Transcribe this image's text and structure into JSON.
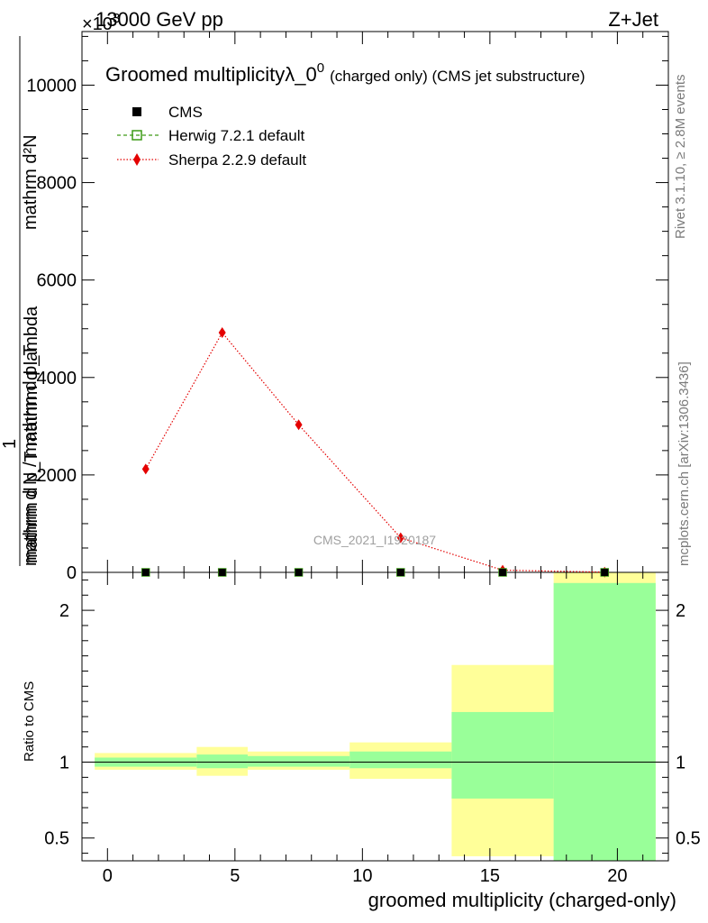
{
  "header": {
    "energy_label": "13000 GeV pp",
    "process_label": "Z+Jet",
    "exponent_label": "×10",
    "exponent_superscript": "3"
  },
  "side_labels": {
    "rivet": "Rivet 3.1.10, ≥ 2.8M events",
    "mcplots": "mcplots.cern.ch [arXiv:1306.3436]"
  },
  "chart_data": [
    {
      "type": "line",
      "title": "Groomed multiplicityλ_0",
      "title_superscript": "0",
      "title_suffix": "(charged only) (CMS jet substructure)",
      "xlabel": "",
      "ylabel_numerator": "mathrm d²N",
      "ylabel_numerator_sub": "mathrm d p_T mathrm d lambda",
      "ylabel_one": "1",
      "ylabel_denominator": "mathrm d N / mathrm d p_T",
      "ylim": [
        0,
        11100
      ],
      "xlim": [
        -1,
        22
      ],
      "yticks": [
        0,
        2000,
        4000,
        6000,
        8000,
        10000
      ],
      "ytick_labels": [
        "0",
        "2000",
        "4000",
        "6000",
        "8000",
        "10000"
      ],
      "analysis_id": "CMS_2021_I1920187",
      "legend_position": "top-left",
      "legend": [
        {
          "name": "CMS",
          "marker": "square",
          "color": "#000000"
        },
        {
          "name": "Herwig 7.2.1 default",
          "marker": "open-square",
          "color": "#3d9b16"
        },
        {
          "name": "Sherpa 2.2.9 default",
          "marker": "diamond",
          "color": "#e40000"
        }
      ],
      "series": [
        {
          "name": "CMS",
          "x": [
            1.5,
            4.5,
            7.5,
            11.5,
            15.5,
            19.5
          ],
          "values": [
            0,
            0,
            0,
            0,
            0,
            0
          ]
        },
        {
          "name": "Herwig 7.2.1 default",
          "x": [
            1.5,
            4.5,
            7.5,
            11.5,
            15.5,
            19.5
          ],
          "values": [
            0,
            0,
            0,
            0,
            0,
            0
          ]
        },
        {
          "name": "Sherpa 2.2.9 default",
          "x": [
            1.5,
            4.5,
            7.5,
            11.5,
            15.5,
            19.5
          ],
          "values": [
            2120,
            4920,
            3030,
            710,
            45,
            5
          ]
        }
      ]
    },
    {
      "type": "area",
      "title": "",
      "xlabel": "groomed multiplicity (charged-only)",
      "ylabel": "Ratio to CMS",
      "ylim": [
        0.35,
        2.25
      ],
      "xlim": [
        -1,
        22
      ],
      "yticks": [
        0.5,
        1,
        2
      ],
      "ytick_labels": [
        "0.5",
        "1",
        "2"
      ],
      "xticks": [
        0,
        5,
        10,
        15,
        20
      ],
      "xtick_labels": [
        "0",
        "5",
        "10",
        "15",
        "20"
      ],
      "bins": [
        {
          "lo": -0.5,
          "hi": 3.5,
          "stat_lo": 0.97,
          "stat_hi": 1.03,
          "tot_lo": 0.95,
          "tot_hi": 1.06
        },
        {
          "lo": 3.5,
          "hi": 5.5,
          "stat_lo": 0.96,
          "stat_hi": 1.05,
          "tot_lo": 0.91,
          "tot_hi": 1.1
        },
        {
          "lo": 5.5,
          "hi": 9.5,
          "stat_lo": 0.97,
          "stat_hi": 1.04,
          "tot_lo": 0.95,
          "tot_hi": 1.07
        },
        {
          "lo": 9.5,
          "hi": 13.5,
          "stat_lo": 0.96,
          "stat_hi": 1.07,
          "tot_lo": 0.89,
          "tot_hi": 1.13
        },
        {
          "lo": 13.5,
          "hi": 17.5,
          "stat_lo": 0.76,
          "stat_hi": 1.33,
          "tot_lo": 0.38,
          "tot_hi": 1.64
        },
        {
          "lo": 17.5,
          "hi": 21.5,
          "stat_lo": 0.35,
          "stat_hi": 2.18,
          "tot_lo": 0.35,
          "tot_hi": 2.25
        }
      ],
      "colors": {
        "stat": "#99ff99",
        "tot": "#ffff99",
        "ref_line": "#000000"
      }
    }
  ]
}
